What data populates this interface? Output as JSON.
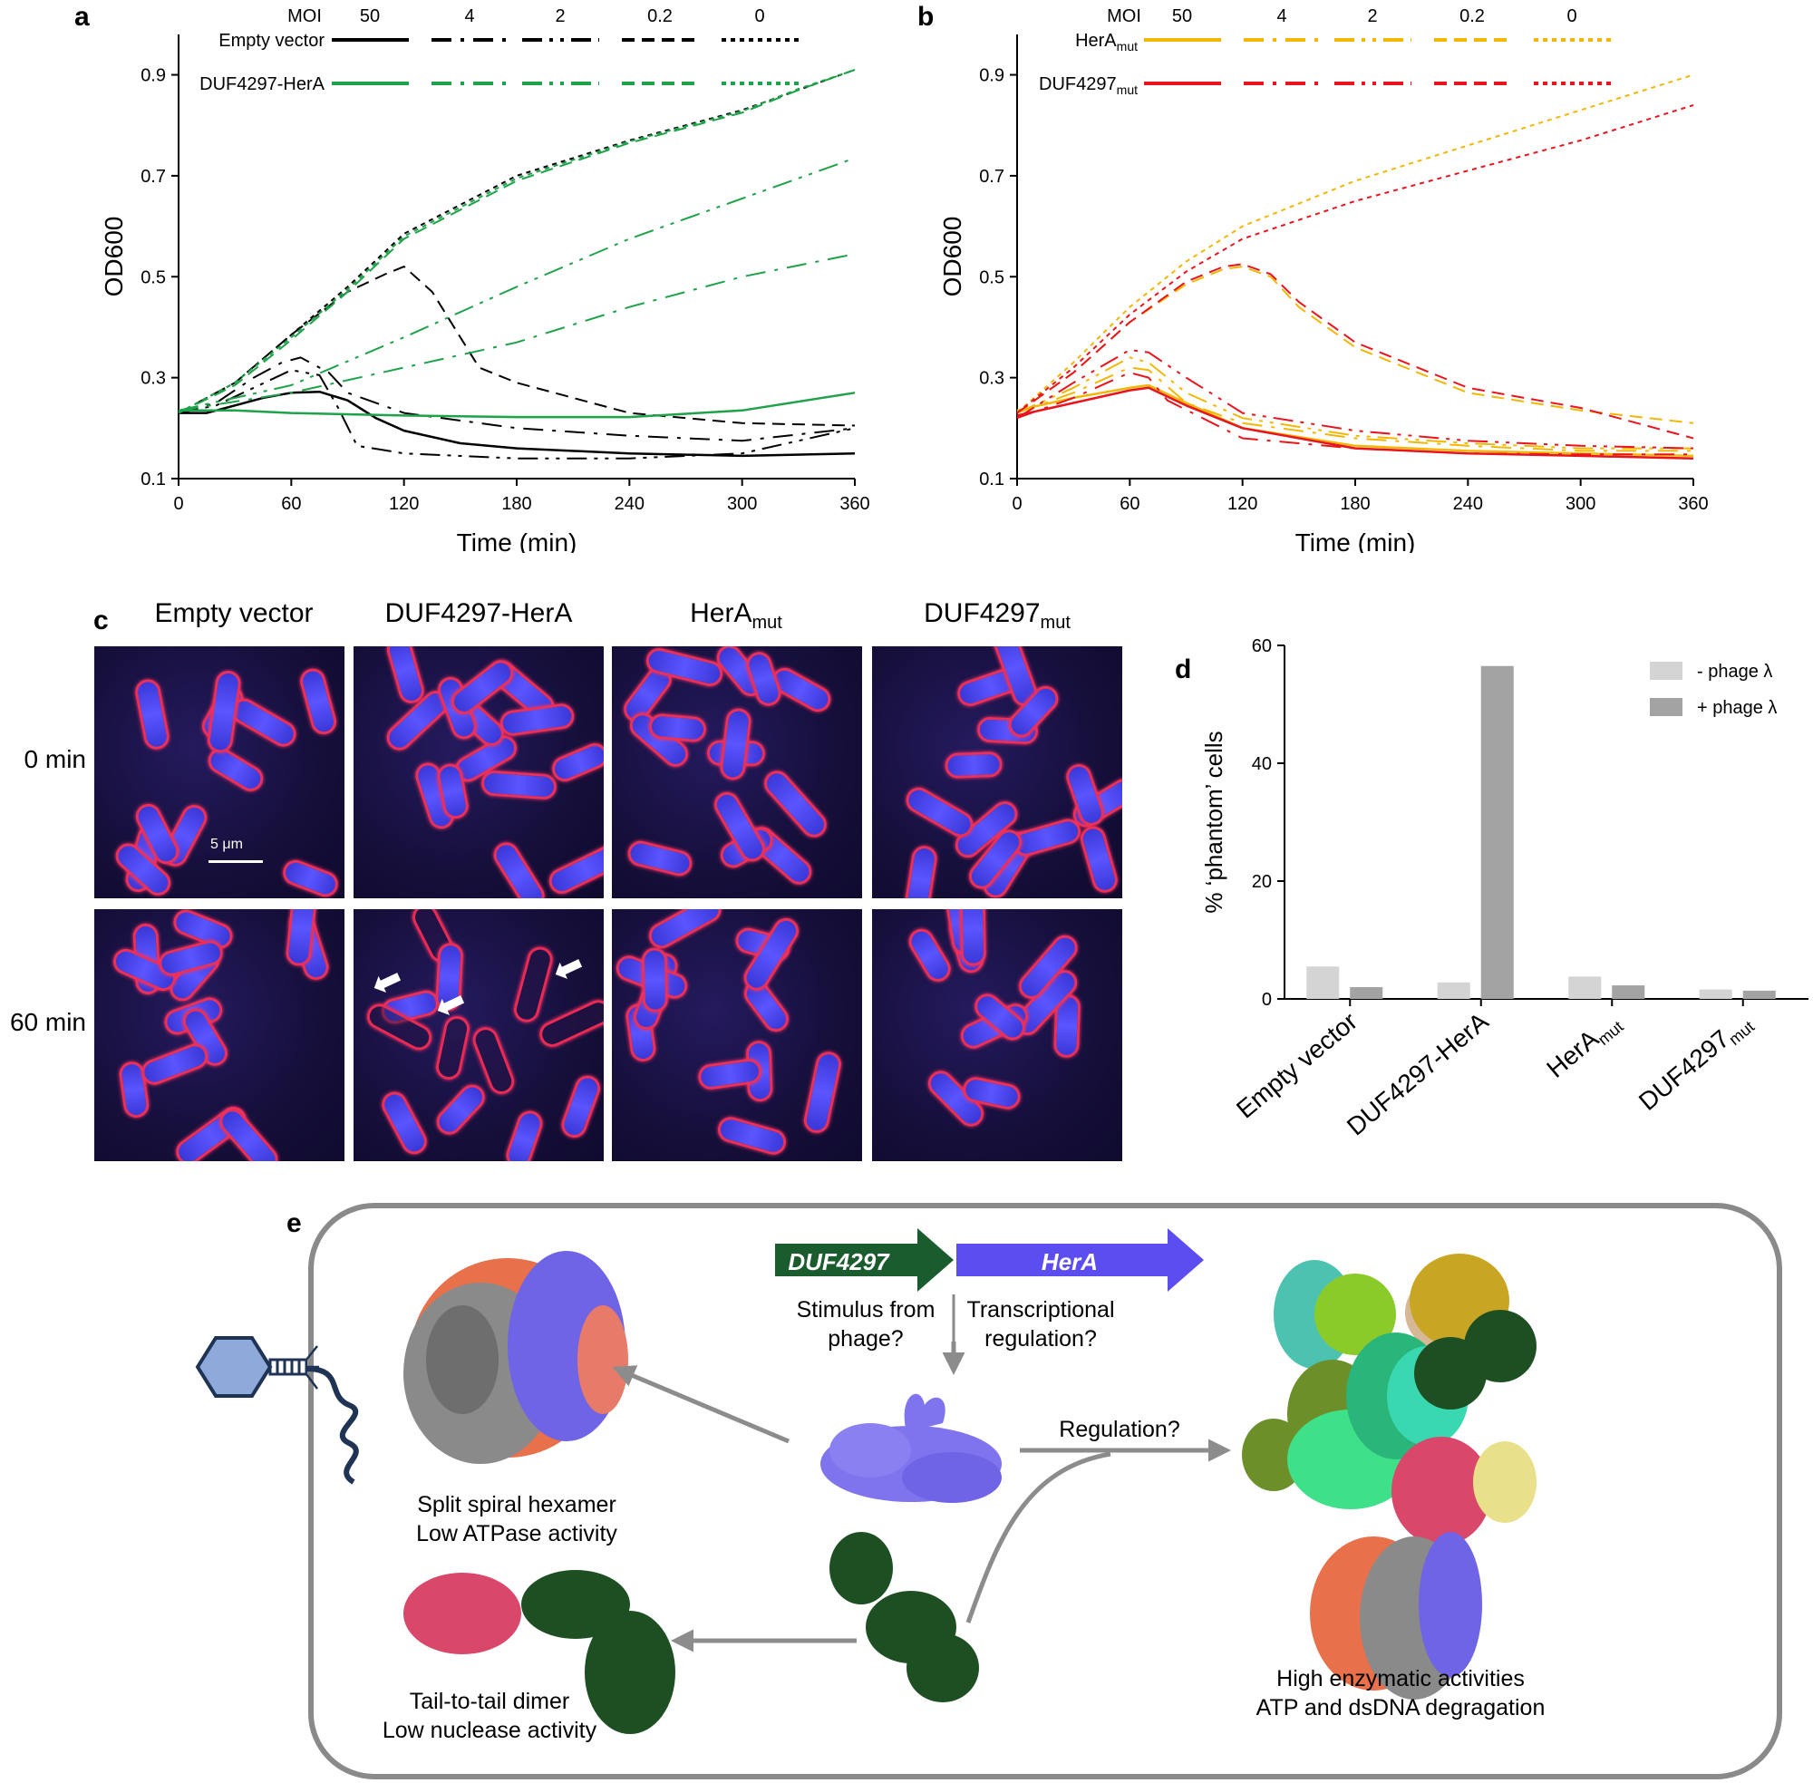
{
  "panels": {
    "a": "a",
    "b": "b",
    "c": "c",
    "d": "d",
    "e": "e"
  },
  "moi": {
    "label": "MOI",
    "values": [
      "50",
      "4",
      "2",
      "0.2",
      "0"
    ]
  },
  "chart_data": [
    {
      "id": "a",
      "type": "line",
      "xlabel": "Time (min)",
      "ylabel": "OD600",
      "xlim": [
        0,
        360
      ],
      "ylim": [
        0.1,
        0.98
      ],
      "xticks": [
        0,
        60,
        120,
        180,
        240,
        300,
        360
      ],
      "yticks": [
        0.1,
        0.3,
        0.5,
        0.7,
        0.9
      ],
      "legend": [
        "Empty vector",
        "DUF4297-HerA"
      ],
      "colors": {
        "Empty vector": "#000000",
        "DUF4297-HerA": "#1fa24a"
      },
      "series": [
        {
          "name": "Empty vector",
          "moi": "50",
          "x": [
            0,
            15,
            30,
            45,
            60,
            75,
            90,
            105,
            120,
            150,
            180,
            240,
            300,
            360
          ],
          "y": [
            0.23,
            0.23,
            0.245,
            0.26,
            0.27,
            0.272,
            0.255,
            0.22,
            0.195,
            0.17,
            0.16,
            0.15,
            0.145,
            0.15
          ]
        },
        {
          "name": "Empty vector",
          "moi": "4",
          "x": [
            0,
            20,
            40,
            55,
            65,
            80,
            90,
            120,
            180,
            240,
            300,
            360
          ],
          "y": [
            0.23,
            0.25,
            0.3,
            0.33,
            0.34,
            0.31,
            0.27,
            0.23,
            0.2,
            0.185,
            0.175,
            0.2
          ]
        },
        {
          "name": "Empty vector",
          "moi": "2",
          "x": [
            0,
            20,
            40,
            60,
            75,
            85,
            95,
            120,
            180,
            240,
            300,
            360
          ],
          "y": [
            0.23,
            0.245,
            0.28,
            0.315,
            0.305,
            0.24,
            0.165,
            0.15,
            0.14,
            0.14,
            0.15,
            0.2
          ]
        },
        {
          "name": "Empty vector",
          "moi": "0.2",
          "x": [
            0,
            30,
            60,
            90,
            110,
            120,
            135,
            150,
            160,
            180,
            240,
            300,
            360
          ],
          "y": [
            0.23,
            0.29,
            0.385,
            0.47,
            0.505,
            0.52,
            0.47,
            0.38,
            0.32,
            0.29,
            0.23,
            0.21,
            0.205
          ]
        },
        {
          "name": "Empty vector",
          "moi": "0",
          "x": [
            0,
            30,
            60,
            90,
            120,
            180,
            240,
            300,
            330,
            360
          ],
          "y": [
            0.23,
            0.29,
            0.385,
            0.48,
            0.585,
            0.7,
            0.77,
            0.83,
            0.87,
            0.91
          ]
        },
        {
          "name": "DUF4297-HerA",
          "moi": "50",
          "x": [
            0,
            30,
            60,
            120,
            180,
            240,
            300,
            360
          ],
          "y": [
            0.235,
            0.235,
            0.23,
            0.225,
            0.222,
            0.222,
            0.235,
            0.27
          ]
        },
        {
          "name": "DUF4297-HerA",
          "moi": "4",
          "x": [
            0,
            60,
            120,
            180,
            240,
            300,
            360
          ],
          "y": [
            0.235,
            0.27,
            0.32,
            0.37,
            0.44,
            0.5,
            0.545
          ]
        },
        {
          "name": "DUF4297-HerA",
          "moi": "2",
          "x": [
            0,
            60,
            120,
            180,
            240,
            300,
            360
          ],
          "y": [
            0.235,
            0.285,
            0.38,
            0.48,
            0.575,
            0.655,
            0.735
          ]
        },
        {
          "name": "DUF4297-HerA",
          "moi": "0.2",
          "x": [
            0,
            30,
            60,
            90,
            120,
            180,
            240,
            300,
            330,
            360
          ],
          "y": [
            0.23,
            0.285,
            0.375,
            0.47,
            0.575,
            0.69,
            0.765,
            0.825,
            0.87,
            0.91
          ]
        },
        {
          "name": "DUF4297-HerA",
          "moi": "0",
          "x": [
            0,
            30,
            60,
            90,
            120,
            180,
            240,
            300,
            330,
            360
          ],
          "y": [
            0.23,
            0.29,
            0.38,
            0.475,
            0.58,
            0.695,
            0.768,
            0.828,
            0.872,
            0.91
          ]
        }
      ]
    },
    {
      "id": "b",
      "type": "line",
      "xlabel": "Time (min)",
      "ylabel": "OD600",
      "xlim": [
        0,
        360
      ],
      "ylim": [
        0.1,
        0.98
      ],
      "xticks": [
        0,
        60,
        120,
        180,
        240,
        300,
        360
      ],
      "yticks": [
        0.1,
        0.3,
        0.5,
        0.7,
        0.9
      ],
      "legend": [
        "HerA",
        "DUF4297"
      ],
      "legend_sub": "mut",
      "colors": {
        "HerA": "#f2b705",
        "DUF4297": "#e8141e"
      },
      "series": [
        {
          "name": "HerA",
          "moi": "50",
          "x": [
            0,
            30,
            60,
            70,
            90,
            120,
            180,
            240,
            300,
            360
          ],
          "y": [
            0.235,
            0.26,
            0.28,
            0.285,
            0.25,
            0.2,
            0.165,
            0.155,
            0.15,
            0.145
          ]
        },
        {
          "name": "HerA",
          "moi": "4",
          "x": [
            0,
            30,
            60,
            70,
            90,
            120,
            180,
            240,
            300,
            360
          ],
          "y": [
            0.23,
            0.27,
            0.32,
            0.315,
            0.25,
            0.21,
            0.18,
            0.165,
            0.155,
            0.155
          ]
        },
        {
          "name": "HerA",
          "moi": "2",
          "x": [
            0,
            30,
            60,
            70,
            90,
            120,
            180,
            240,
            300,
            360
          ],
          "y": [
            0.23,
            0.28,
            0.34,
            0.33,
            0.27,
            0.22,
            0.185,
            0.17,
            0.16,
            0.16
          ]
        },
        {
          "name": "HerA",
          "moi": "0.2",
          "x": [
            0,
            30,
            60,
            90,
            110,
            120,
            135,
            150,
            180,
            240,
            300,
            360
          ],
          "y": [
            0.23,
            0.31,
            0.41,
            0.485,
            0.515,
            0.52,
            0.5,
            0.44,
            0.36,
            0.27,
            0.235,
            0.21
          ]
        },
        {
          "name": "HerA",
          "moi": "0",
          "x": [
            0,
            30,
            60,
            90,
            120,
            180,
            240,
            300,
            360
          ],
          "y": [
            0.23,
            0.33,
            0.44,
            0.53,
            0.6,
            0.69,
            0.76,
            0.83,
            0.9
          ]
        },
        {
          "name": "DUF4297",
          "moi": "50",
          "x": [
            0,
            30,
            60,
            70,
            90,
            120,
            180,
            240,
            300,
            360
          ],
          "y": [
            0.225,
            0.25,
            0.275,
            0.28,
            0.245,
            0.2,
            0.16,
            0.15,
            0.145,
            0.14
          ]
        },
        {
          "name": "DUF4297",
          "moi": "4",
          "x": [
            0,
            30,
            60,
            70,
            80,
            120,
            180,
            240,
            300,
            360
          ],
          "y": [
            0.22,
            0.26,
            0.31,
            0.3,
            0.255,
            0.18,
            0.16,
            0.15,
            0.148,
            0.148
          ]
        },
        {
          "name": "DUF4297",
          "moi": "2",
          "x": [
            0,
            30,
            60,
            70,
            90,
            120,
            180,
            240,
            300,
            360
          ],
          "y": [
            0.22,
            0.29,
            0.355,
            0.35,
            0.3,
            0.23,
            0.195,
            0.175,
            0.165,
            0.16
          ]
        },
        {
          "name": "DUF4297",
          "moi": "0.2",
          "x": [
            0,
            30,
            60,
            90,
            110,
            120,
            135,
            150,
            180,
            240,
            300,
            360
          ],
          "y": [
            0.23,
            0.31,
            0.41,
            0.49,
            0.52,
            0.525,
            0.505,
            0.45,
            0.37,
            0.28,
            0.24,
            0.18
          ]
        },
        {
          "name": "DUF4297",
          "moi": "0",
          "x": [
            0,
            30,
            60,
            90,
            120,
            180,
            240,
            300,
            360
          ],
          "y": [
            0.23,
            0.32,
            0.425,
            0.51,
            0.575,
            0.65,
            0.71,
            0.77,
            0.84
          ]
        }
      ]
    },
    {
      "id": "d",
      "type": "bar",
      "ylabel": "% ‘phantom’ cells",
      "ylim": [
        0,
        60
      ],
      "yticks": [
        0,
        20,
        40,
        60
      ],
      "categories": [
        {
          "main": "Empty vector",
          "sub": ""
        },
        {
          "main": "DUF4297-HerA",
          "sub": ""
        },
        {
          "main": "HerA",
          "sub": "mut"
        },
        {
          "main": "DUF4297",
          "sub": "mut"
        }
      ],
      "series": [
        {
          "name": "- phage λ",
          "color": "#d4d4d4",
          "values": [
            5.5,
            2.8,
            3.8,
            1.6
          ]
        },
        {
          "name": "+ phage λ",
          "color": "#a3a3a3",
          "values": [
            2.0,
            56.5,
            2.3,
            1.4
          ]
        }
      ],
      "legend": "top-right"
    }
  ],
  "micro": {
    "columns": [
      {
        "main": "Empty vector",
        "sub": ""
      },
      {
        "main": "DUF4297-HerA",
        "sub": ""
      },
      {
        "main": "HerA",
        "sub": "mut"
      },
      {
        "main": "DUF4297",
        "sub": "mut"
      }
    ],
    "rows": [
      "0 min",
      "60 min"
    ],
    "scalebar": "5 μm"
  },
  "model": {
    "gene1": "DUF4297",
    "gene2": "HerA",
    "q1": "Stimulus from\nphage?",
    "q2": "Transcriptional\nregulation?",
    "regulation": "Regulation?",
    "hexamer": "Split spiral hexamer\nLow ATPase activity",
    "dimer": "Tail-to-tail dimer\nLow nuclease activity",
    "complex": "High enzymatic activities\nATP and dsDNA degragation",
    "colors": {
      "duf": "#1a5c2e",
      "hera": "#5b4df0",
      "arrow": "#8c8c8c"
    }
  }
}
